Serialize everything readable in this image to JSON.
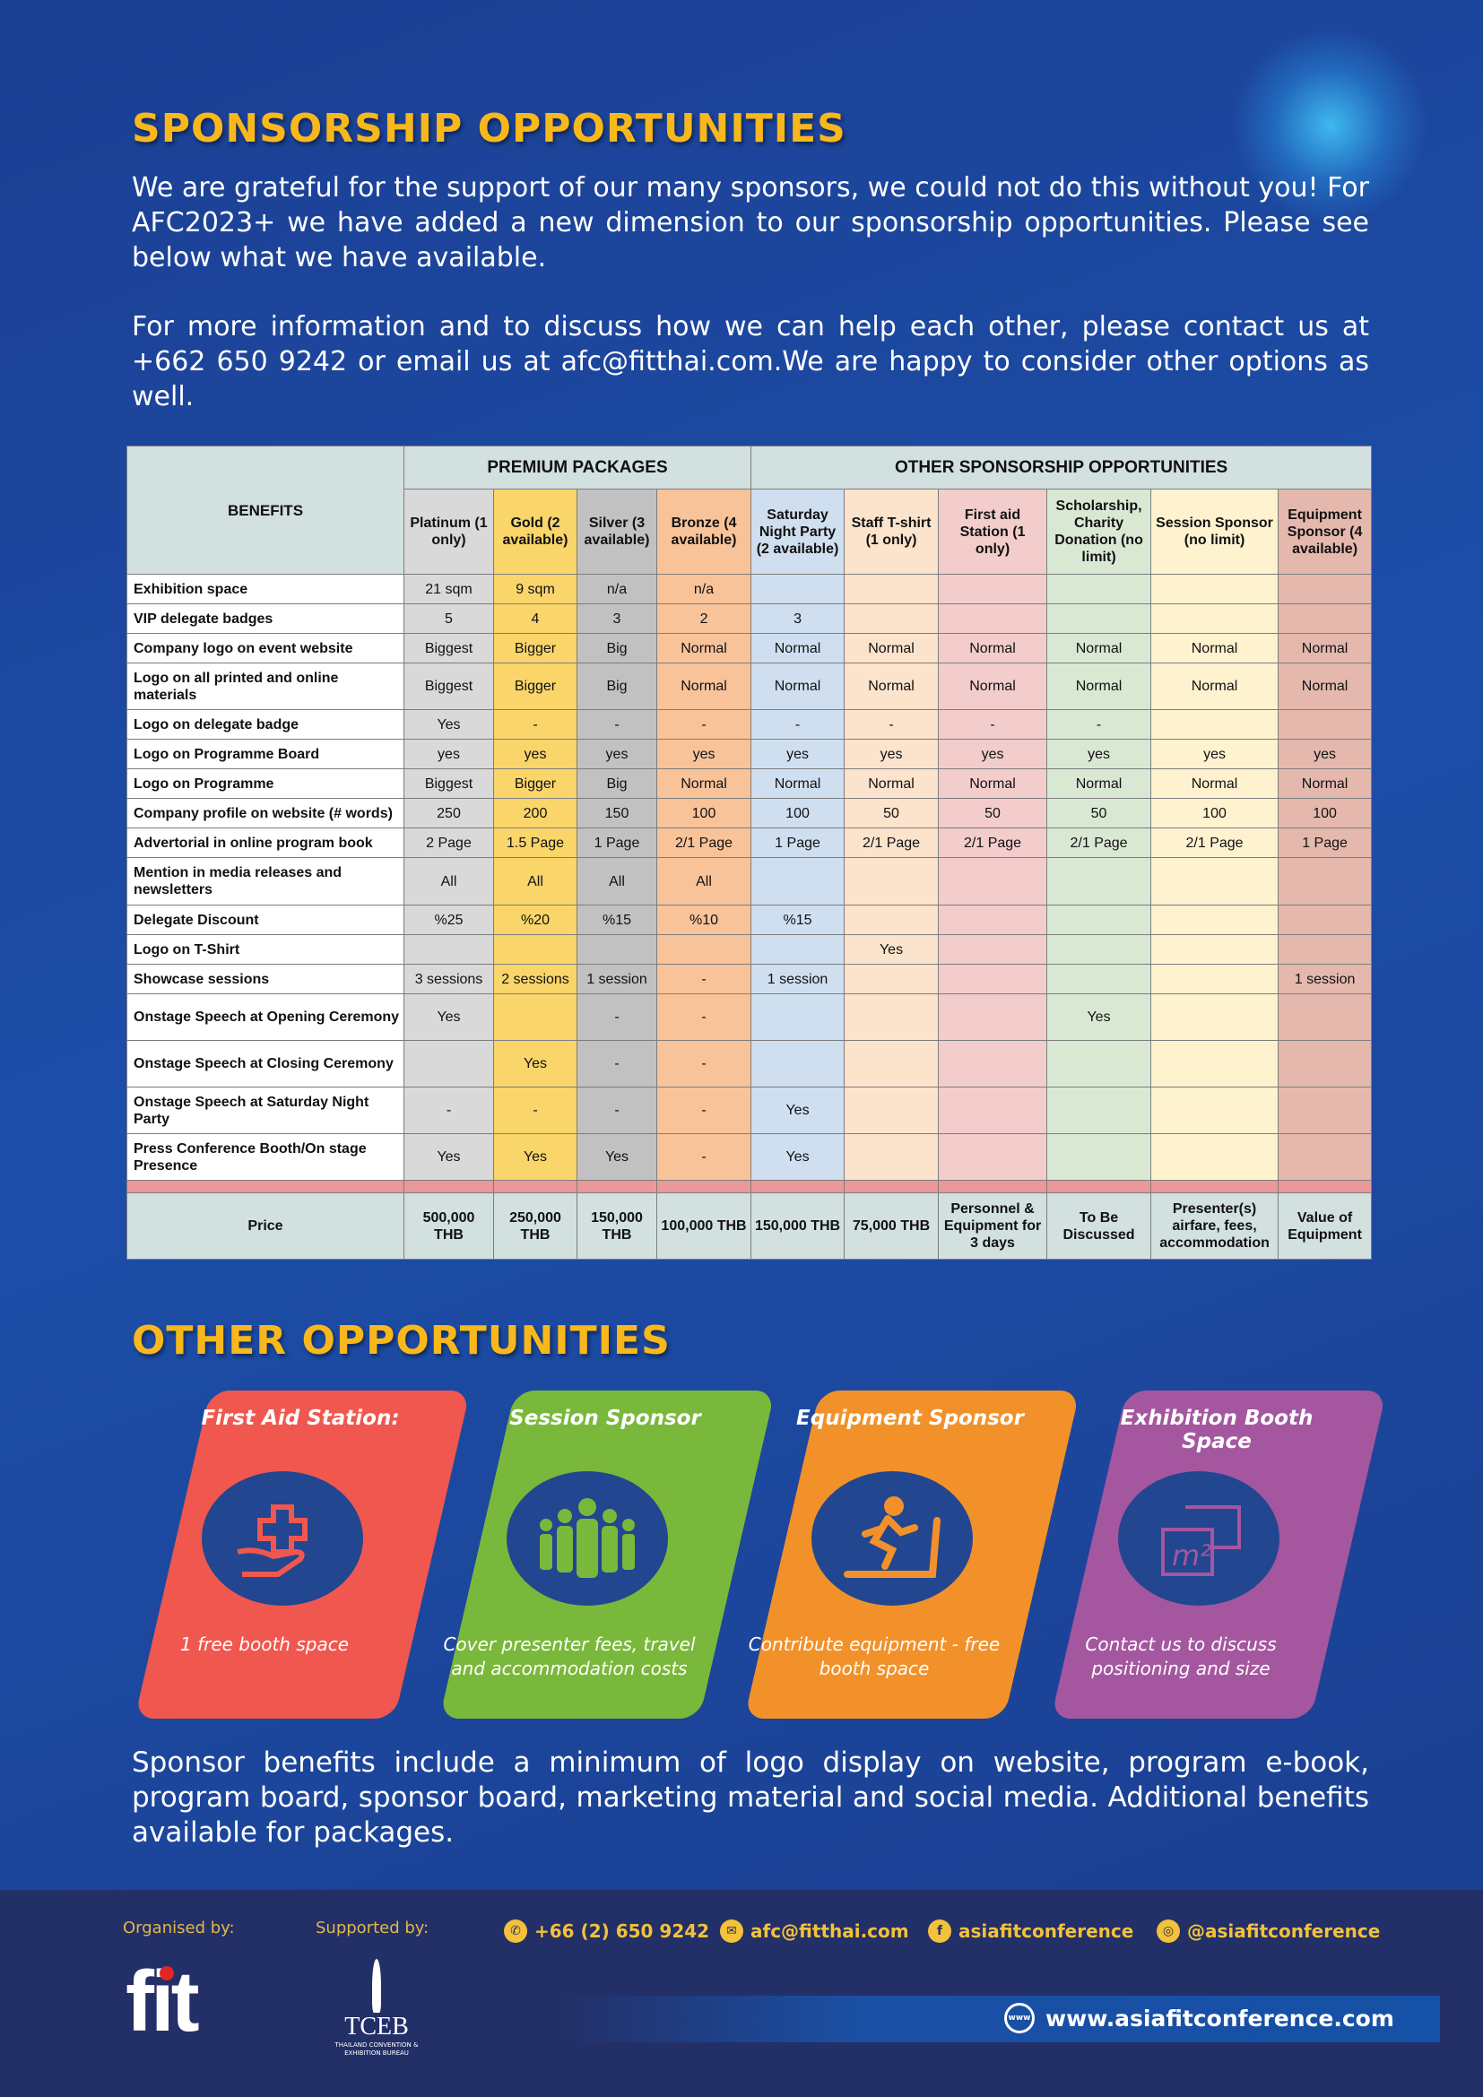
{
  "title": "SPONSORSHIP OPPORTUNITIES",
  "intro1": "We are grateful for the support of our many sponsors, we could not do this without you! For AFC2023+ we have added a new dimension to our sponsorship opportunities. Please see below what we have available.",
  "intro2": "For more information and to discuss how we can help each other, please contact us at +662 650 9242 or email us at afc@fitthai.com.We are happy to consider other options as well.",
  "table": {
    "benefits_header": "BENEFITS",
    "group_premium": "PREMIUM PACKAGES",
    "group_other": "OTHER SPONSORSHIP OPPORTUNITIES",
    "columns": [
      "Platinum (1 only)",
      "Gold (2 available)",
      "Silver (3 available)",
      "Bronze (4 available)",
      "Saturday Night Party (2 available)",
      "Staff T-shirt (1 only)",
      "First aid Station (1 only)",
      "Scholarship, Charity Donation (no limit)",
      "Session Sponsor (no limit)",
      "Equipment Sponsor (4 available)"
    ],
    "rows": [
      {
        "benefit": "Exhibition space",
        "values": [
          "21 sqm",
          "9 sqm",
          "n/a",
          "n/a",
          "",
          "",
          "",
          "",
          "",
          ""
        ]
      },
      {
        "benefit": "VIP delegate badges",
        "values": [
          "5",
          "4",
          "3",
          "2",
          "3",
          "",
          "",
          "",
          "",
          ""
        ]
      },
      {
        "benefit": "Company logo on event website",
        "values": [
          "Biggest",
          "Bigger",
          "Big",
          "Normal",
          "Normal",
          "Normal",
          "Normal",
          "Normal",
          "Normal",
          "Normal"
        ]
      },
      {
        "benefit": "Logo  on all printed and online materials",
        "values": [
          "Biggest",
          "Bigger",
          "Big",
          "Normal",
          "Normal",
          "Normal",
          "Normal",
          "Normal",
          "Normal",
          "Normal"
        ]
      },
      {
        "benefit": "Logo on delegate badge",
        "values": [
          "Yes",
          "-",
          "-",
          "-",
          "-",
          "-",
          "-",
          "-",
          "",
          ""
        ]
      },
      {
        "benefit": "Logo on Programme Board",
        "values": [
          "yes",
          "yes",
          "yes",
          "yes",
          "yes",
          "yes",
          "yes",
          "yes",
          "yes",
          "yes"
        ]
      },
      {
        "benefit": "Logo on Programme",
        "values": [
          "Biggest",
          "Bigger",
          "Big",
          "Normal",
          "Normal",
          "Normal",
          "Normal",
          "Normal",
          "Normal",
          "Normal"
        ]
      },
      {
        "benefit": "Company profile on website (# words)",
        "values": [
          "250",
          "200",
          "150",
          "100",
          "100",
          "50",
          "50",
          "50",
          "100",
          "100"
        ]
      },
      {
        "benefit": "Advertorial in online program book",
        "values": [
          "2 Page",
          "1.5 Page",
          "1 Page",
          "2/1 Page",
          "1 Page",
          "2/1 Page",
          "2/1 Page",
          "2/1 Page",
          "2/1 Page",
          "1 Page"
        ]
      },
      {
        "benefit": "Mention in media releases and newsletters",
        "values": [
          "All",
          "All",
          "All",
          "All",
          "",
          "",
          "",
          "",
          "",
          ""
        ]
      },
      {
        "benefit": "Delegate Discount",
        "values": [
          "%25",
          "%20",
          "%15",
          "%10",
          "%15",
          "",
          "",
          "",
          "",
          ""
        ]
      },
      {
        "benefit": "Logo on T-Shirt",
        "values": [
          "",
          "",
          "",
          "",
          "",
          "Yes",
          "",
          "",
          "",
          ""
        ]
      },
      {
        "benefit": "Showcase sessions",
        "values": [
          "3 sessions",
          "2 sessions",
          "1 session",
          "-",
          "1 session",
          "",
          "",
          "",
          "",
          "1 session"
        ]
      },
      {
        "benefit": "Onstage Speech at Opening Ceremony",
        "values": [
          "Yes",
          "",
          "-",
          "-",
          "",
          "",
          "",
          "Yes",
          "",
          ""
        ]
      },
      {
        "benefit": "Onstage Speech at Closing Ceremony",
        "values": [
          "",
          "Yes",
          "-",
          "-",
          "",
          "",
          "",
          "",
          "",
          ""
        ]
      },
      {
        "benefit": "Onstage Speech at Saturday Night Party",
        "values": [
          "-",
          "-",
          "-",
          "-",
          "Yes",
          "",
          "",
          "",
          "",
          ""
        ]
      },
      {
        "benefit": "Press Conference Booth/On stage Presence",
        "values": [
          "Yes",
          "Yes",
          "Yes",
          "-",
          "Yes",
          "",
          "",
          "",
          "",
          ""
        ]
      }
    ],
    "price_label": "Price",
    "prices": [
      "500,000 THB",
      "250,000 THB",
      "150,000 THB",
      "100,000 THB",
      "150,000 THB",
      "75,000 THB",
      "Personnel & Equipment for 3 days",
      "To Be Discussed",
      "Presenter(s) airfare, fees, accommodation",
      "Value of Equipment"
    ]
  },
  "other_title": "OTHER OPPORTUNITIES",
  "cards": [
    {
      "title": "First Aid Station:",
      "desc": "1 free booth space",
      "icon": "hand-medical-cross-icon",
      "color": "#f0574e"
    },
    {
      "title": "Session Sponsor",
      "desc": "Cover presenter fees, travel and accommodation costs",
      "icon": "group-people-icon",
      "color": "#7ab83b"
    },
    {
      "title": "Equipment Sponsor",
      "desc": "Contribute equipment - free booth space",
      "icon": "treadmill-runner-icon",
      "color": "#f2912a"
    },
    {
      "title": "Exhibition Booth Space",
      "desc": "Contact us to discuss positioning and size",
      "icon": "square-meter-icon",
      "color": "#a4579f"
    }
  ],
  "benefits_note": "Sponsor benefits include a minimum of logo display on website, program e-book, program board, sponsor board, marketing material and social media. Additional benefits available for packages.",
  "footer": {
    "organised_by": "Organised by:",
    "supported_by": "Supported by:",
    "phone": "+66 (2) 650 9242",
    "email": "afc@fitthai.com",
    "facebook": "asiafitconference",
    "instagram": "@asiafitconference",
    "website": "www.asiafitconference.com",
    "fit_logo": "fit",
    "tceb_logo": "TCEB",
    "tceb_sub": "THAILAND CONVENTION & EXHIBITION BUREAU"
  }
}
